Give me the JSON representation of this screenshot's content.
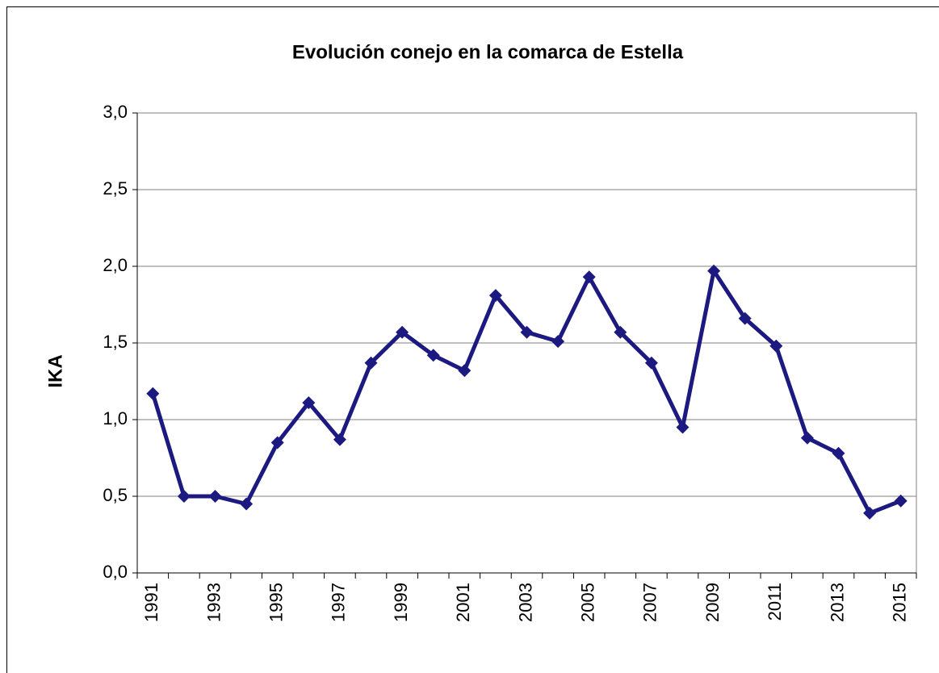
{
  "chart_data": {
    "type": "line",
    "title": "Evolución conejo en la comarca de Estella",
    "y_label": "IKA",
    "categories": [
      "1991",
      null,
      "1993",
      null,
      "1995",
      null,
      "1997",
      null,
      "1999",
      null,
      "2001",
      null,
      "2003",
      null,
      "2005",
      null,
      "2007",
      null,
      "2009",
      null,
      "2011",
      null,
      "2013",
      null,
      "2015"
    ],
    "series": [
      {
        "color": "#1c1a80",
        "values": [
          1.17,
          0.5,
          0.5,
          0.45,
          0.85,
          1.11,
          0.87,
          1.37,
          1.57,
          1.42,
          1.32,
          1.81,
          1.57,
          1.51,
          1.93,
          1.57,
          1.37,
          0.95,
          1.97,
          1.66,
          1.48,
          0.88,
          0.78,
          0.39,
          0.47
        ]
      }
    ],
    "ylim": [
      0,
      3
    ],
    "yticks": [
      {
        "value": 0,
        "label": "0,0"
      },
      {
        "value": 0.5,
        "label": "0,5"
      },
      {
        "value": 1,
        "label": "1,0"
      },
      {
        "value": 1.5,
        "label": "1,5"
      },
      {
        "value": 2,
        "label": "2,0"
      },
      {
        "value": 2.5,
        "label": "2,5"
      },
      {
        "value": 3,
        "label": "3,0"
      }
    ],
    "grid": true
  }
}
